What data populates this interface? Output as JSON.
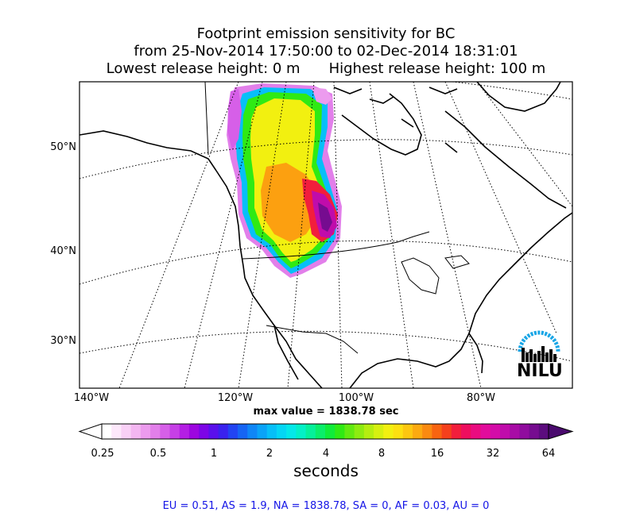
{
  "header": {
    "title": "Footprint emission sensitivity for BC",
    "period": "from 25-Nov-2014 17:50:00 to 02-Dec-2014 18:31:01",
    "lowest_release": "Lowest release height: 0 m",
    "highest_release": "Highest release height: 100 m"
  },
  "map": {
    "lat_labels": [
      "50°N",
      "40°N",
      "30°N"
    ],
    "lon_labels": [
      "140°W",
      "120°W",
      "100°W",
      "80°W"
    ],
    "max_value_text": "max value = 1838.78 sec",
    "logo_text": "NILU"
  },
  "colorbar": {
    "ticks": [
      "0.25",
      "0.5",
      "1",
      "2",
      "4",
      "8",
      "16",
      "32",
      "64"
    ],
    "label": "seconds",
    "colors": [
      "#ffffff",
      "#fde8fb",
      "#f9d0f6",
      "#f3b6f1",
      "#ec9bee",
      "#e27fea",
      "#d65fe8",
      "#c63fe6",
      "#b41ee4",
      "#9d06e0",
      "#7d05e6",
      "#5a10ec",
      "#3a22ee",
      "#2244f2",
      "#1665f4",
      "#0f86f7",
      "#0aa3f8",
      "#07bff8",
      "#05d6f4",
      "#04e8e8",
      "#03f0c6",
      "#05f09a",
      "#0aee6a",
      "#10ec3a",
      "#2fea14",
      "#62ea10",
      "#8eec10",
      "#b5ee10",
      "#d6f010",
      "#f2f010",
      "#fde010",
      "#fdc710",
      "#fcaa10",
      "#fa8a10",
      "#f86410",
      "#f5401c",
      "#f21e3c",
      "#ee0e5e",
      "#ea0c80",
      "#e20c9c",
      "#d40ca8",
      "#c00cab",
      "#a80ca6",
      "#900c9e",
      "#760c90",
      "#5c0c7e"
    ]
  },
  "chart_data": {
    "type": "heatmap",
    "title": "Footprint emission sensitivity for BC",
    "subtitle": "from 25-Nov-2014 17:50:00 to 02-Dec-2014 18:31:01",
    "colorbar_label": "seconds",
    "colorbar_ticks": [
      0.25,
      0.5,
      1,
      2,
      4,
      8,
      16,
      32,
      64
    ],
    "colorbar_scale": "log",
    "max_value_sec": 1838.78,
    "lat_ticks_degN": [
      50,
      40,
      30
    ],
    "lon_ticks_degW": [
      140,
      120,
      100,
      80
    ],
    "region_totals": {
      "EU": 0.51,
      "AS": 1.9,
      "NA": 1838.78,
      "SA": 0,
      "AF": 0.03,
      "AU": 0
    }
  },
  "footer": {
    "totals_text": "EU = 0.51,  AS = 1.9,  NA = 1838.78,  SA = 0,  AF = 0.03,  AU = 0"
  }
}
